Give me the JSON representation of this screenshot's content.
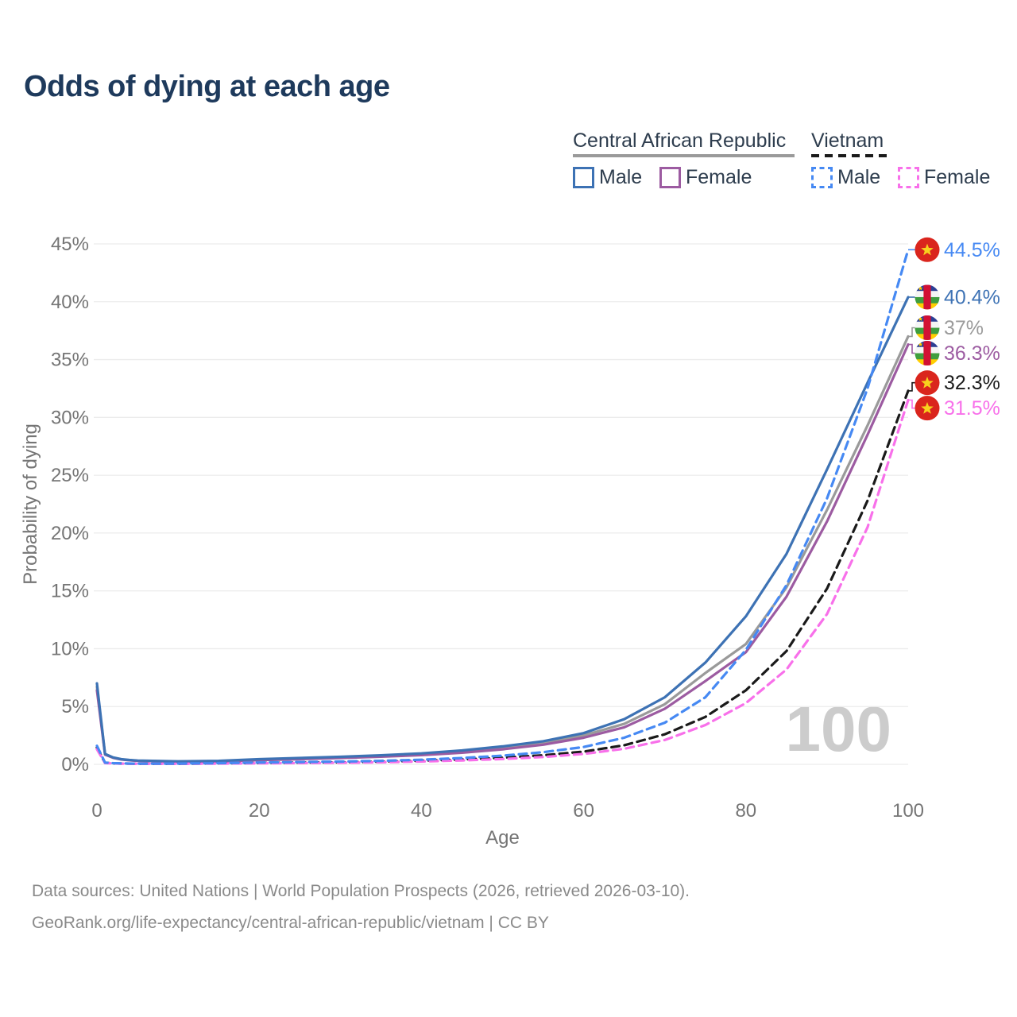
{
  "title": "Odds of dying at each age",
  "legend": {
    "group1_label": "Central African Republic",
    "group2_label": "Vietnam",
    "male_label": "Male",
    "female_label": "Female"
  },
  "watermark": "100",
  "footer": {
    "line1": "Data sources: United Nations | World Population Prospects (2026, retrieved 2026-03-10).",
    "line2": "GeoRank.org/life-expectancy/central-african-republic/vietnam | CC BY"
  },
  "colors": {
    "title_text": "#1e3a5c",
    "legend_text": "#2e3d4e",
    "axis_text": "#757575",
    "gridline": "#ececec",
    "footer_text": "#8a8a8a",
    "watermark": "#cccccc",
    "car_underline": "#9a9a9a",
    "vietnam_underline": "#1a1a1a",
    "vietnam_flag_red": "#da251d",
    "flag_star_yellow": "#f7d21e",
    "car_flag_blue": "#2c3f94",
    "car_flag_white": "#f5f5f5",
    "car_flag_green": "#3f9e3f",
    "car_flag_yellow": "#ffce00",
    "car_flag_red": "#d21034"
  },
  "chart_data": {
    "type": "line",
    "title": "Odds of dying at each age",
    "xlabel": "Age",
    "ylabel": "Probability of dying",
    "xlim": [
      0,
      100
    ],
    "ylim": [
      0,
      45
    ],
    "x_ticks": [
      0,
      20,
      40,
      60,
      80,
      100
    ],
    "y_ticks": [
      0,
      5,
      10,
      15,
      20,
      25,
      30,
      35,
      40,
      45
    ],
    "y_tick_suffix": "%",
    "grid": "horizontal",
    "legend_position": "top-right",
    "ages": [
      0,
      1,
      2,
      3,
      4,
      5,
      10,
      15,
      20,
      25,
      30,
      35,
      40,
      45,
      50,
      55,
      60,
      65,
      70,
      75,
      80,
      85,
      90,
      95,
      100
    ],
    "series": [
      {
        "key": "car_total",
        "name": "Central African Republic — Both sexes",
        "country": "Central African Republic",
        "sex": "both",
        "color": "#9a9a9a",
        "dash": false,
        "flag": "cf",
        "end_label": "37%",
        "end_value": 37.0,
        "values": [
          6.7,
          0.87,
          0.58,
          0.43,
          0.36,
          0.31,
          0.24,
          0.27,
          0.4,
          0.5,
          0.6,
          0.72,
          0.88,
          1.1,
          1.4,
          1.85,
          2.5,
          3.5,
          5.2,
          7.9,
          10.4,
          15.3,
          22.0,
          29.3,
          37.0
        ]
      },
      {
        "key": "car_female",
        "name": "Central African Republic — Female",
        "country": "Central African Republic",
        "sex": "female",
        "color": "#9c5ba1",
        "dash": false,
        "flag": "cf",
        "end_label": "36.3%",
        "end_value": 36.3,
        "values": [
          6.4,
          0.84,
          0.56,
          0.42,
          0.35,
          0.3,
          0.23,
          0.25,
          0.36,
          0.45,
          0.55,
          0.66,
          0.8,
          1.0,
          1.3,
          1.7,
          2.3,
          3.2,
          4.8,
          7.2,
          9.7,
          14.5,
          21.0,
          28.5,
          36.3
        ]
      },
      {
        "key": "car_male",
        "name": "Central African Republic — Male",
        "country": "Central African Republic",
        "sex": "male",
        "color": "#3d72b4",
        "dash": false,
        "flag": "cf",
        "end_label": "40.4%",
        "end_value": 40.4,
        "values": [
          7.0,
          0.9,
          0.6,
          0.45,
          0.38,
          0.33,
          0.26,
          0.3,
          0.45,
          0.55,
          0.65,
          0.78,
          0.95,
          1.2,
          1.55,
          2.0,
          2.7,
          3.9,
          5.8,
          8.8,
          12.8,
          18.2,
          25.5,
          33.0,
          40.4
        ]
      },
      {
        "key": "vn_total",
        "name": "Vietnam — Both sexes",
        "country": "Vietnam",
        "sex": "both",
        "color": "#1a1a1a",
        "dash": true,
        "flag": "vn",
        "end_label": "32.3%",
        "end_value": 32.3,
        "values": [
          1.45,
          0.13,
          0.09,
          0.07,
          0.06,
          0.05,
          0.05,
          0.08,
          0.12,
          0.15,
          0.18,
          0.23,
          0.31,
          0.42,
          0.57,
          0.78,
          1.1,
          1.65,
          2.6,
          4.1,
          6.4,
          9.8,
          15.2,
          22.8,
          32.3
        ]
      },
      {
        "key": "vn_female",
        "name": "Vietnam — Female",
        "country": "Vietnam",
        "sex": "female",
        "color": "#f870ea",
        "dash": true,
        "flag": "vn",
        "end_label": "31.5%",
        "end_value": 31.5,
        "values": [
          1.3,
          0.11,
          0.08,
          0.06,
          0.05,
          0.045,
          0.045,
          0.06,
          0.09,
          0.11,
          0.14,
          0.18,
          0.25,
          0.34,
          0.46,
          0.63,
          0.9,
          1.35,
          2.1,
          3.4,
          5.3,
          8.2,
          13.0,
          20.5,
          31.5
        ]
      },
      {
        "key": "vn_male",
        "name": "Vietnam — Male",
        "country": "Vietnam",
        "sex": "male",
        "color": "#4689f3",
        "dash": true,
        "flag": "vn",
        "end_label": "44.5%",
        "end_value": 44.5,
        "values": [
          1.6,
          0.15,
          0.1,
          0.08,
          0.07,
          0.06,
          0.06,
          0.1,
          0.16,
          0.2,
          0.24,
          0.3,
          0.4,
          0.55,
          0.75,
          1.05,
          1.5,
          2.3,
          3.6,
          5.8,
          9.9,
          15.5,
          23.0,
          32.5,
          44.5
        ]
      }
    ]
  }
}
